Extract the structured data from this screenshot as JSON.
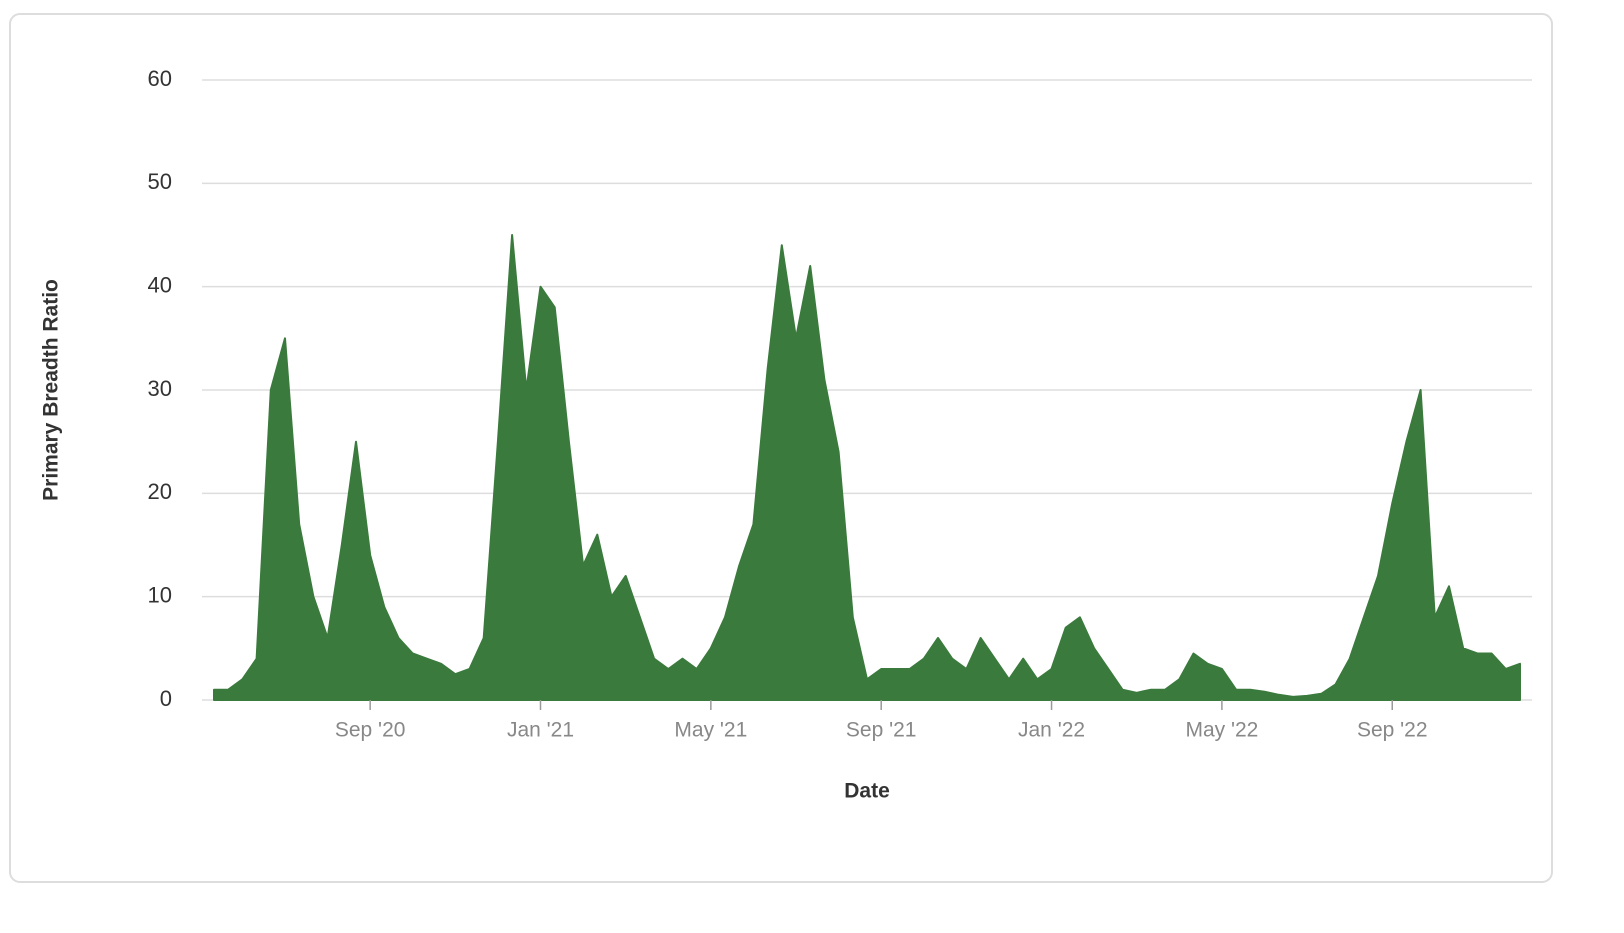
{
  "chart_data": {
    "type": "area",
    "x_label": "Date",
    "y_label": "Primary Breadth Ratio",
    "categories": [
      null,
      null,
      null,
      null,
      null,
      null,
      null,
      null,
      null,
      null,
      null,
      "Sep '20",
      null,
      null,
      null,
      null,
      null,
      null,
      null,
      null,
      null,
      null,
      null,
      "Jan '21",
      null,
      null,
      null,
      null,
      null,
      null,
      null,
      null,
      null,
      null,
      null,
      "May '21",
      null,
      null,
      null,
      null,
      null,
      null,
      null,
      null,
      null,
      null,
      null,
      "Sep '21",
      null,
      null,
      null,
      null,
      null,
      null,
      null,
      null,
      null,
      null,
      null,
      "Jan '22",
      null,
      null,
      null,
      null,
      null,
      null,
      null,
      null,
      null,
      null,
      null,
      "May '22",
      null,
      null,
      null,
      null,
      null,
      null,
      null,
      null,
      null,
      null,
      null,
      "Sep '22",
      null,
      null,
      null,
      null,
      null,
      null,
      null,
      null,
      null
    ],
    "values": [
      1,
      1,
      2,
      4,
      30,
      35,
      17,
      10,
      6,
      15,
      25,
      14,
      9,
      6,
      4.5,
      4,
      3.5,
      2.5,
      3,
      6,
      25,
      45,
      30,
      40,
      38,
      25,
      13,
      16,
      10,
      12,
      8,
      4,
      3,
      4,
      3,
      5,
      8,
      13,
      17,
      32,
      44,
      35,
      42,
      31,
      24,
      8,
      2,
      3,
      3,
      3,
      4,
      6,
      4,
      3,
      6,
      4,
      2,
      4,
      2,
      3,
      7,
      8,
      5,
      3,
      1,
      0.7,
      1,
      1,
      2,
      4.5,
      3.5,
      3,
      1,
      1,
      0.8,
      0.5,
      0.3,
      0.4,
      0.6,
      1.5,
      4,
      8,
      12,
      19,
      25,
      30,
      8,
      11,
      5,
      4.5,
      4.5,
      3,
      3.5
    ],
    "color": "#3a7a3c",
    "ylim": [
      0,
      60
    ],
    "yticks": [
      0,
      10,
      20,
      30,
      40,
      50,
      60
    ],
    "grid": true
  }
}
